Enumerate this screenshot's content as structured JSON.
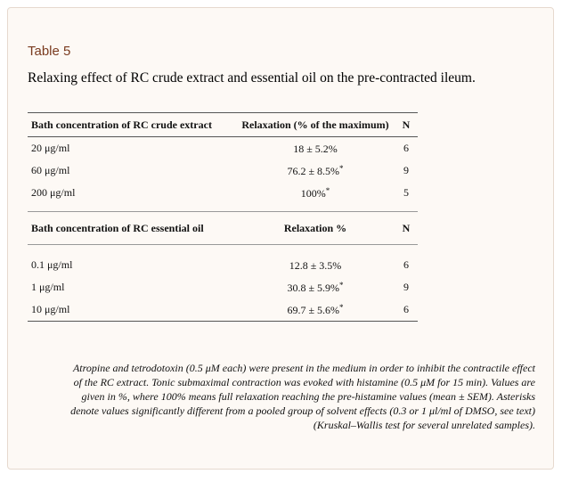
{
  "table": {
    "label": "Table 5",
    "caption": "Relaxing effect of RC crude extract and essential oil on the pre-contracted ileum.",
    "section1": {
      "headers": [
        "Bath concentration of RC crude extract",
        "Relaxation (% of the maximum)",
        "N"
      ],
      "rows": [
        {
          "conc": "20 μg/ml",
          "value": "18 ± 5.2%",
          "asterisk": "",
          "n": "6"
        },
        {
          "conc": "60 μg/ml",
          "value": "76.2 ± 8.5%",
          "asterisk": "*",
          "n": "9"
        },
        {
          "conc": "200 μg/ml",
          "value": "100%",
          "asterisk": "*",
          "n": "5"
        }
      ]
    },
    "section2": {
      "headers": [
        "Bath concentration of RC essential oil",
        "Relaxation %",
        "N"
      ],
      "rows": [
        {
          "conc": "0.1 μg/ml",
          "value": "12.8 ± 3.5%",
          "asterisk": "",
          "n": "6"
        },
        {
          "conc": "1 μg/ml",
          "value": "30.8 ± 5.9%",
          "asterisk": "*",
          "n": "9"
        },
        {
          "conc": "10 μg/ml",
          "value": "69.7 ± 5.6%",
          "asterisk": "*",
          "n": "6"
        }
      ]
    },
    "footnote": [
      "Atropine and tetrodotoxin (0.5 μM each) were present in the medium in order to inhibit the contractile effect",
      "of the RC extract. Tonic submaximal contraction was evoked with histamine (0.5 μM for 15 min). Values are",
      "given in %, where 100% means full relaxation reaching the pre-histamine values (mean ± SEM). Asterisks",
      "denote values significantly different from a pooled group of solvent effects (0.3 or 1 μl/ml of DMSO, see text)",
      "(Kruskal–Wallis test for several unrelated samples)."
    ]
  }
}
